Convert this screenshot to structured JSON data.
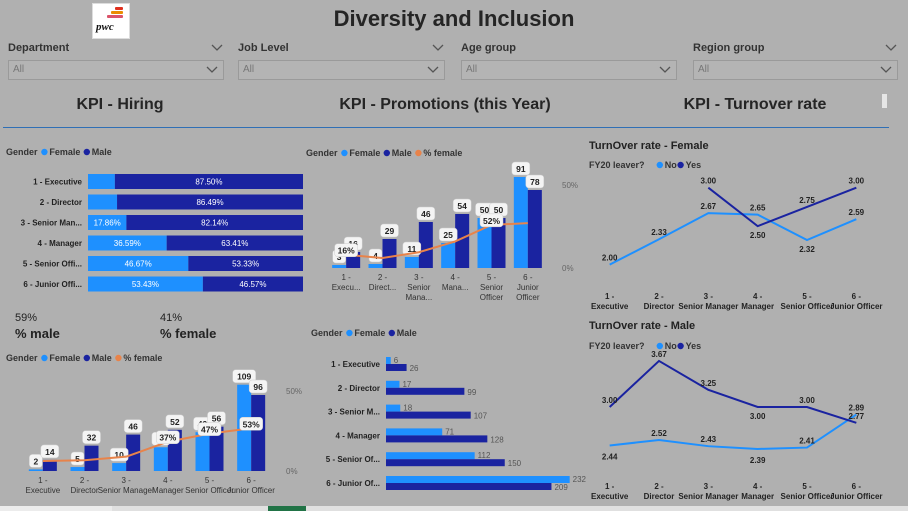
{
  "header": {
    "title": "Diversity and Inclusion",
    "logo_text": "pwc"
  },
  "slicers": [
    {
      "label": "Department",
      "value": "All"
    },
    {
      "label": "Job Level",
      "value": "All"
    },
    {
      "label": "Age group",
      "value": "All"
    },
    {
      "label": "Region group",
      "value": "All"
    }
  ],
  "kpis": {
    "hiring": "KPI - Hiring",
    "promotions": "KPI - Promotions (this Year)",
    "turnover": "KPI - Turnover rate"
  },
  "cards": {
    "male_value": "59%",
    "male_label": "% male",
    "female_value": "41%",
    "female_label": "% female"
  },
  "colors": {
    "female": "#1e90ff",
    "male": "#1a23a0",
    "pct_line": "#e8834a",
    "turnover_female": "#1e90ff",
    "turnover_male": "#1a23a0",
    "accent": "#2f6fb5"
  },
  "chart_data": [
    {
      "id": "hiring_stacked",
      "type": "bar",
      "orientation": "horizontal",
      "stacked": "100%",
      "legend_title": "Gender",
      "legend": [
        "Female",
        "Male"
      ],
      "categories": [
        "1 - Executive",
        "2 - Director",
        "3 - Senior Man...",
        "4 - Manager",
        "5 - Senior Offi...",
        "6 - Junior Offi..."
      ],
      "series": [
        {
          "name": "Female",
          "values": [
            12.5,
            13.51,
            17.86,
            36.59,
            46.67,
            53.43
          ],
          "labels": [
            "",
            "",
            "17.86%",
            "36.59%",
            "46.67%",
            "53.43%"
          ]
        },
        {
          "name": "Male",
          "values": [
            87.5,
            86.49,
            82.14,
            63.41,
            53.33,
            46.57
          ],
          "labels": [
            "87.50%",
            "86.49%",
            "82.14%",
            "63.41%",
            "53.33%",
            "46.57%"
          ]
        }
      ]
    },
    {
      "id": "hiring_column",
      "type": "bar",
      "legend_title": "Gender",
      "legend": [
        "Female",
        "Male",
        "% female"
      ],
      "categories": [
        "1 - Executive",
        "2 - Director",
        "3 - Senior Manager",
        "4 - Manager",
        "5 - Senior Officer",
        "6 - Junior Officer"
      ],
      "series": [
        {
          "name": "Female",
          "values": [
            2,
            5,
            10,
            30,
            49,
            109
          ]
        },
        {
          "name": "Male",
          "values": [
            14,
            32,
            46,
            52,
            56,
            96
          ]
        }
      ],
      "line": {
        "name": "% female",
        "values": [
          12.5,
          13.5,
          17.9,
          36.6,
          46.7,
          53.4
        ],
        "labels": [
          "",
          "",
          "",
          "37%",
          "47%",
          "53%"
        ]
      },
      "y2_ticks": [
        "50%",
        "0%"
      ],
      "ylim": [
        0,
        120
      ]
    },
    {
      "id": "promotions_column",
      "type": "bar",
      "legend_title": "Gender",
      "legend": [
        "Female",
        "Male",
        "% female"
      ],
      "categories": [
        "1 - Executive",
        "2 - Director",
        "3 - Senior Manager",
        "4 - Manager",
        "5 - Senior Officer",
        "6 - Junior Officer"
      ],
      "tick_labels": [
        [
          "1 -",
          "Execu..."
        ],
        [
          "2 -",
          "Direct..."
        ],
        [
          "3 -",
          "Senior",
          "Mana..."
        ],
        [
          "4 -",
          "Mana..."
        ],
        [
          "5 -",
          "Senior",
          "Officer"
        ],
        [
          "6 -",
          "Junior",
          "Officer"
        ]
      ],
      "series": [
        {
          "name": "Female",
          "values": [
            3,
            4,
            11,
            25,
            50,
            91
          ]
        },
        {
          "name": "Male",
          "values": [
            16,
            29,
            46,
            54,
            50,
            78
          ]
        }
      ],
      "line": {
        "name": "% female",
        "values": [
          16,
          12,
          19,
          32,
          52,
          54
        ],
        "labels": [
          "16%",
          "",
          "",
          "",
          "52%",
          ""
        ]
      },
      "y2_ticks": [
        "50%",
        "0%"
      ],
      "ylim": [
        0,
        100
      ]
    },
    {
      "id": "promotions_hbar",
      "type": "bar",
      "orientation": "horizontal",
      "legend_title": "Gender",
      "legend": [
        "Female",
        "Male"
      ],
      "categories": [
        "1 - Executive",
        "2 - Director",
        "3 - Senior M...",
        "4 - Manager",
        "5 - Senior Of...",
        "6 - Junior Of..."
      ],
      "series": [
        {
          "name": "Female",
          "values": [
            6,
            17,
            18,
            71,
            112,
            232
          ]
        },
        {
          "name": "Male",
          "values": [
            26,
            99,
            107,
            128,
            150,
            209
          ]
        }
      ],
      "xlim": [
        0,
        240
      ]
    },
    {
      "id": "turnover_female",
      "type": "line",
      "title": "TurnOver rate - Female",
      "legend_title": "FY20 leaver?",
      "legend": [
        "No",
        "Yes"
      ],
      "categories": [
        "1 - Executive",
        "2 - Director",
        "3 - Senior Manager",
        "4 - Manager",
        "5 - Senior Officer",
        "6 - Junior Officer"
      ],
      "series": [
        {
          "name": "No",
          "values": [
            2.0,
            2.33,
            2.67,
            2.65,
            2.32,
            2.59
          ]
        },
        {
          "name": "Yes",
          "values": [
            null,
            null,
            3.0,
            2.5,
            2.75,
            3.0
          ]
        }
      ],
      "ylim": [
        1.8,
        3.1
      ]
    },
    {
      "id": "turnover_male",
      "type": "line",
      "title": "TurnOver rate - Male",
      "legend_title": "FY20 leaver?",
      "legend": [
        "No",
        "Yes"
      ],
      "categories": [
        "1 - Executive",
        "2 - Director",
        "3 - Senior Manager",
        "4 - Manager",
        "5 - Senior Officer",
        "6 - Junior Officer"
      ],
      "series": [
        {
          "name": "No",
          "values": [
            2.44,
            2.52,
            2.43,
            2.39,
            2.41,
            2.89
          ]
        },
        {
          "name": "Yes",
          "values": [
            3.0,
            3.67,
            3.25,
            3.0,
            3.0,
            2.77
          ]
        }
      ],
      "ylim": [
        2.2,
        3.8
      ]
    }
  ]
}
